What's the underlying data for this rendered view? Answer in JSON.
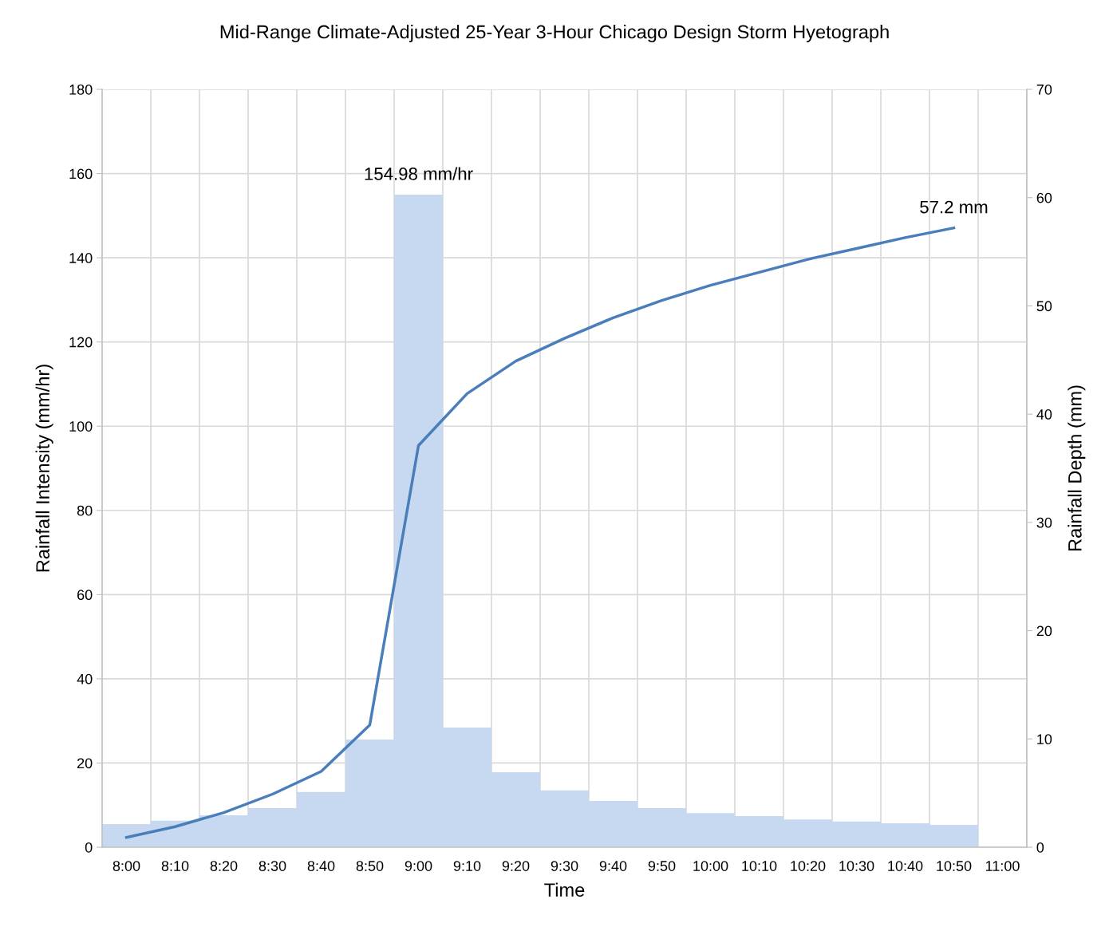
{
  "chart_data": {
    "type": "bar",
    "title": "Mid-Range Climate-Adjusted 25-Year 3-Hour Chicago Design Storm Hyetograph",
    "xlabel": "Time",
    "ylabel": "Rainfall Intensity (mm/hr)",
    "y2label": "Rainfall Depth (mm)",
    "categories": [
      "8:00",
      "8:10",
      "8:20",
      "8:30",
      "8:40",
      "8:50",
      "9:00",
      "9:10",
      "9:20",
      "9:30",
      "9:40",
      "9:50",
      "10:00",
      "10:10",
      "10:20",
      "10:30",
      "10:40",
      "10:50",
      "11:00"
    ],
    "series": [
      {
        "color": "#c6d9f0",
        "values": [
          5.5,
          6.3,
          7.6,
          9.3,
          13.1,
          25.6,
          154.98,
          28.4,
          17.8,
          13.5,
          11.0,
          9.3,
          8.1,
          7.4,
          6.6,
          6.1,
          5.7,
          5.3,
          null
        ],
        "value_labels": [
          null,
          null,
          null,
          null,
          null,
          null,
          "154.98 mm/hr",
          null,
          null,
          null,
          null,
          null,
          null,
          null,
          null,
          null,
          null,
          null,
          null
        ]
      },
      {
        "type": "line",
        "axis": "y2",
        "color": "#4a7ebb",
        "values": [
          0.9,
          1.9,
          3.2,
          4.9,
          7.0,
          11.3,
          37.1,
          41.9,
          44.9,
          47.0,
          48.9,
          50.5,
          51.9,
          53.1,
          54.3,
          55.3,
          56.3,
          57.2,
          null
        ],
        "value_labels": [
          null,
          null,
          null,
          null,
          null,
          null,
          null,
          null,
          null,
          null,
          null,
          null,
          null,
          null,
          null,
          null,
          null,
          "57.2 mm",
          null
        ]
      }
    ],
    "ylim": [
      0,
      180
    ],
    "yticks": [
      0,
      20,
      40,
      60,
      80,
      100,
      120,
      140,
      160,
      180
    ],
    "y2lim": [
      0,
      70
    ],
    "y2ticks": [
      0,
      10,
      20,
      30,
      40,
      50,
      60,
      70
    ],
    "grid": true,
    "legend": false
  }
}
